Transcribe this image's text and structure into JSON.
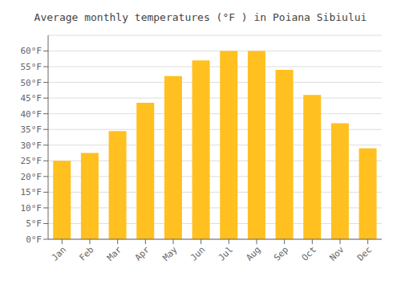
{
  "chart_data": {
    "type": "bar",
    "title": "Average monthly temperatures (°F ) in Poiana Sibiului",
    "categories": [
      "Jan",
      "Feb",
      "Mar",
      "Apr",
      "May",
      "Jun",
      "Jul",
      "Aug",
      "Sep",
      "Oct",
      "Nov",
      "Dec"
    ],
    "values": [
      25,
      27.5,
      34.5,
      43.5,
      52,
      57,
      60,
      60,
      54,
      46,
      37,
      29
    ],
    "color": "#FFC020",
    "ylim": [
      0,
      65
    ],
    "yticks": [
      {
        "value": 0,
        "label": "0°F"
      },
      {
        "value": 5,
        "label": "5°F"
      },
      {
        "value": 10,
        "label": "10°F"
      },
      {
        "value": 15,
        "label": "15°F"
      },
      {
        "value": 20,
        "label": "20°F"
      },
      {
        "value": 25,
        "label": "25°F"
      },
      {
        "value": 30,
        "label": "30°F"
      },
      {
        "value": 35,
        "label": "35°F"
      },
      {
        "value": 40,
        "label": "40°F"
      },
      {
        "value": 45,
        "label": "45°F"
      },
      {
        "value": 50,
        "label": "50°F"
      },
      {
        "value": 55,
        "label": "55°F"
      },
      {
        "value": 60,
        "label": "60°F"
      }
    ],
    "grid": true
  }
}
